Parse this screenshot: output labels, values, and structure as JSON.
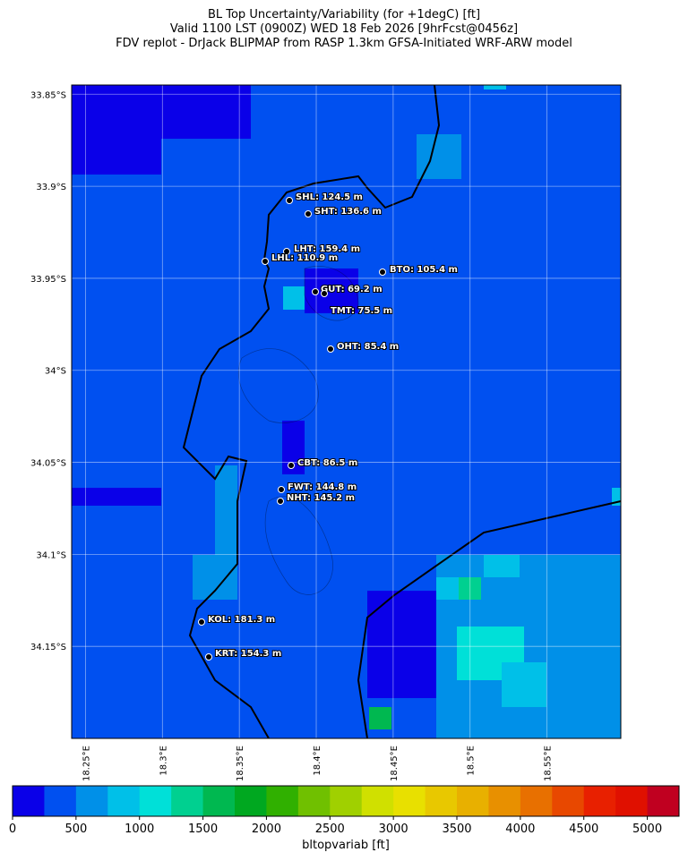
{
  "title_lines": [
    "BL Top Uncertainty/Variability (for +1degC) [ft]",
    "Valid 1100 LST (0900Z) WED 18 Feb 2026 [9hrFcst@0456z]",
    "FDV replot - DrJack BLIPMAP from RASP 1.3km GFSA-Initiated WRF-ARW model"
  ],
  "map": {
    "xlim": [
      18.241,
      18.598
    ],
    "ylim": [
      -34.2,
      -33.845
    ],
    "xticks": [
      {
        "value": 18.25,
        "label": "18.25°E"
      },
      {
        "value": 18.3,
        "label": "18.3°E"
      },
      {
        "value": 18.35,
        "label": "18.35°E"
      },
      {
        "value": 18.4,
        "label": "18.4°E"
      },
      {
        "value": 18.45,
        "label": "18.45°E"
      },
      {
        "value": 18.5,
        "label": "18.5°E"
      },
      {
        "value": 18.55,
        "label": "18.55°E"
      }
    ],
    "yticks": [
      {
        "value": -33.85,
        "label": "33.85°S"
      },
      {
        "value": -33.9,
        "label": "33.9°S"
      },
      {
        "value": -33.95,
        "label": "33.95°S"
      },
      {
        "value": -34.0,
        "label": "34°S"
      },
      {
        "value": -34.05,
        "label": "34.05°S"
      },
      {
        "value": -34.1,
        "label": "34.1°S"
      },
      {
        "value": -34.15,
        "label": "34.15°S"
      }
    ],
    "grid": true,
    "stations": [
      "SHL: 124.5 m",
      "SHT: 136.6 m",
      "LHT: 159.4 m",
      "LHL: 110.9 m",
      "BTO: 105.4 m",
      "GUT: 69.2 m",
      "TMT: 75.5 m",
      "OHT: 85.4 m",
      "CBT: 86.5 m",
      "FWT: 144.8 m",
      "NHT: 145.2 m",
      "KOL: 181.3 m",
      "KRT: 154.3 m"
    ]
  },
  "colorbar": {
    "label": "bltopvariab [ft]",
    "lim": [
      0,
      5250
    ],
    "ticks": [
      0,
      500,
      1000,
      1500,
      2000,
      2500,
      3000,
      3500,
      4000,
      4500,
      5000
    ],
    "colors": [
      "#0a00e8",
      "#0050f0",
      "#0090e8",
      "#00c0e8",
      "#00e0d8",
      "#00d090",
      "#00b850",
      "#00a820",
      "#30b000",
      "#70c000",
      "#a0d000",
      "#d0e000",
      "#e8e000",
      "#e8c800",
      "#e8b000",
      "#e89000",
      "#e87000",
      "#e84800",
      "#e82000",
      "#e01000",
      "#c00020"
    ]
  }
}
